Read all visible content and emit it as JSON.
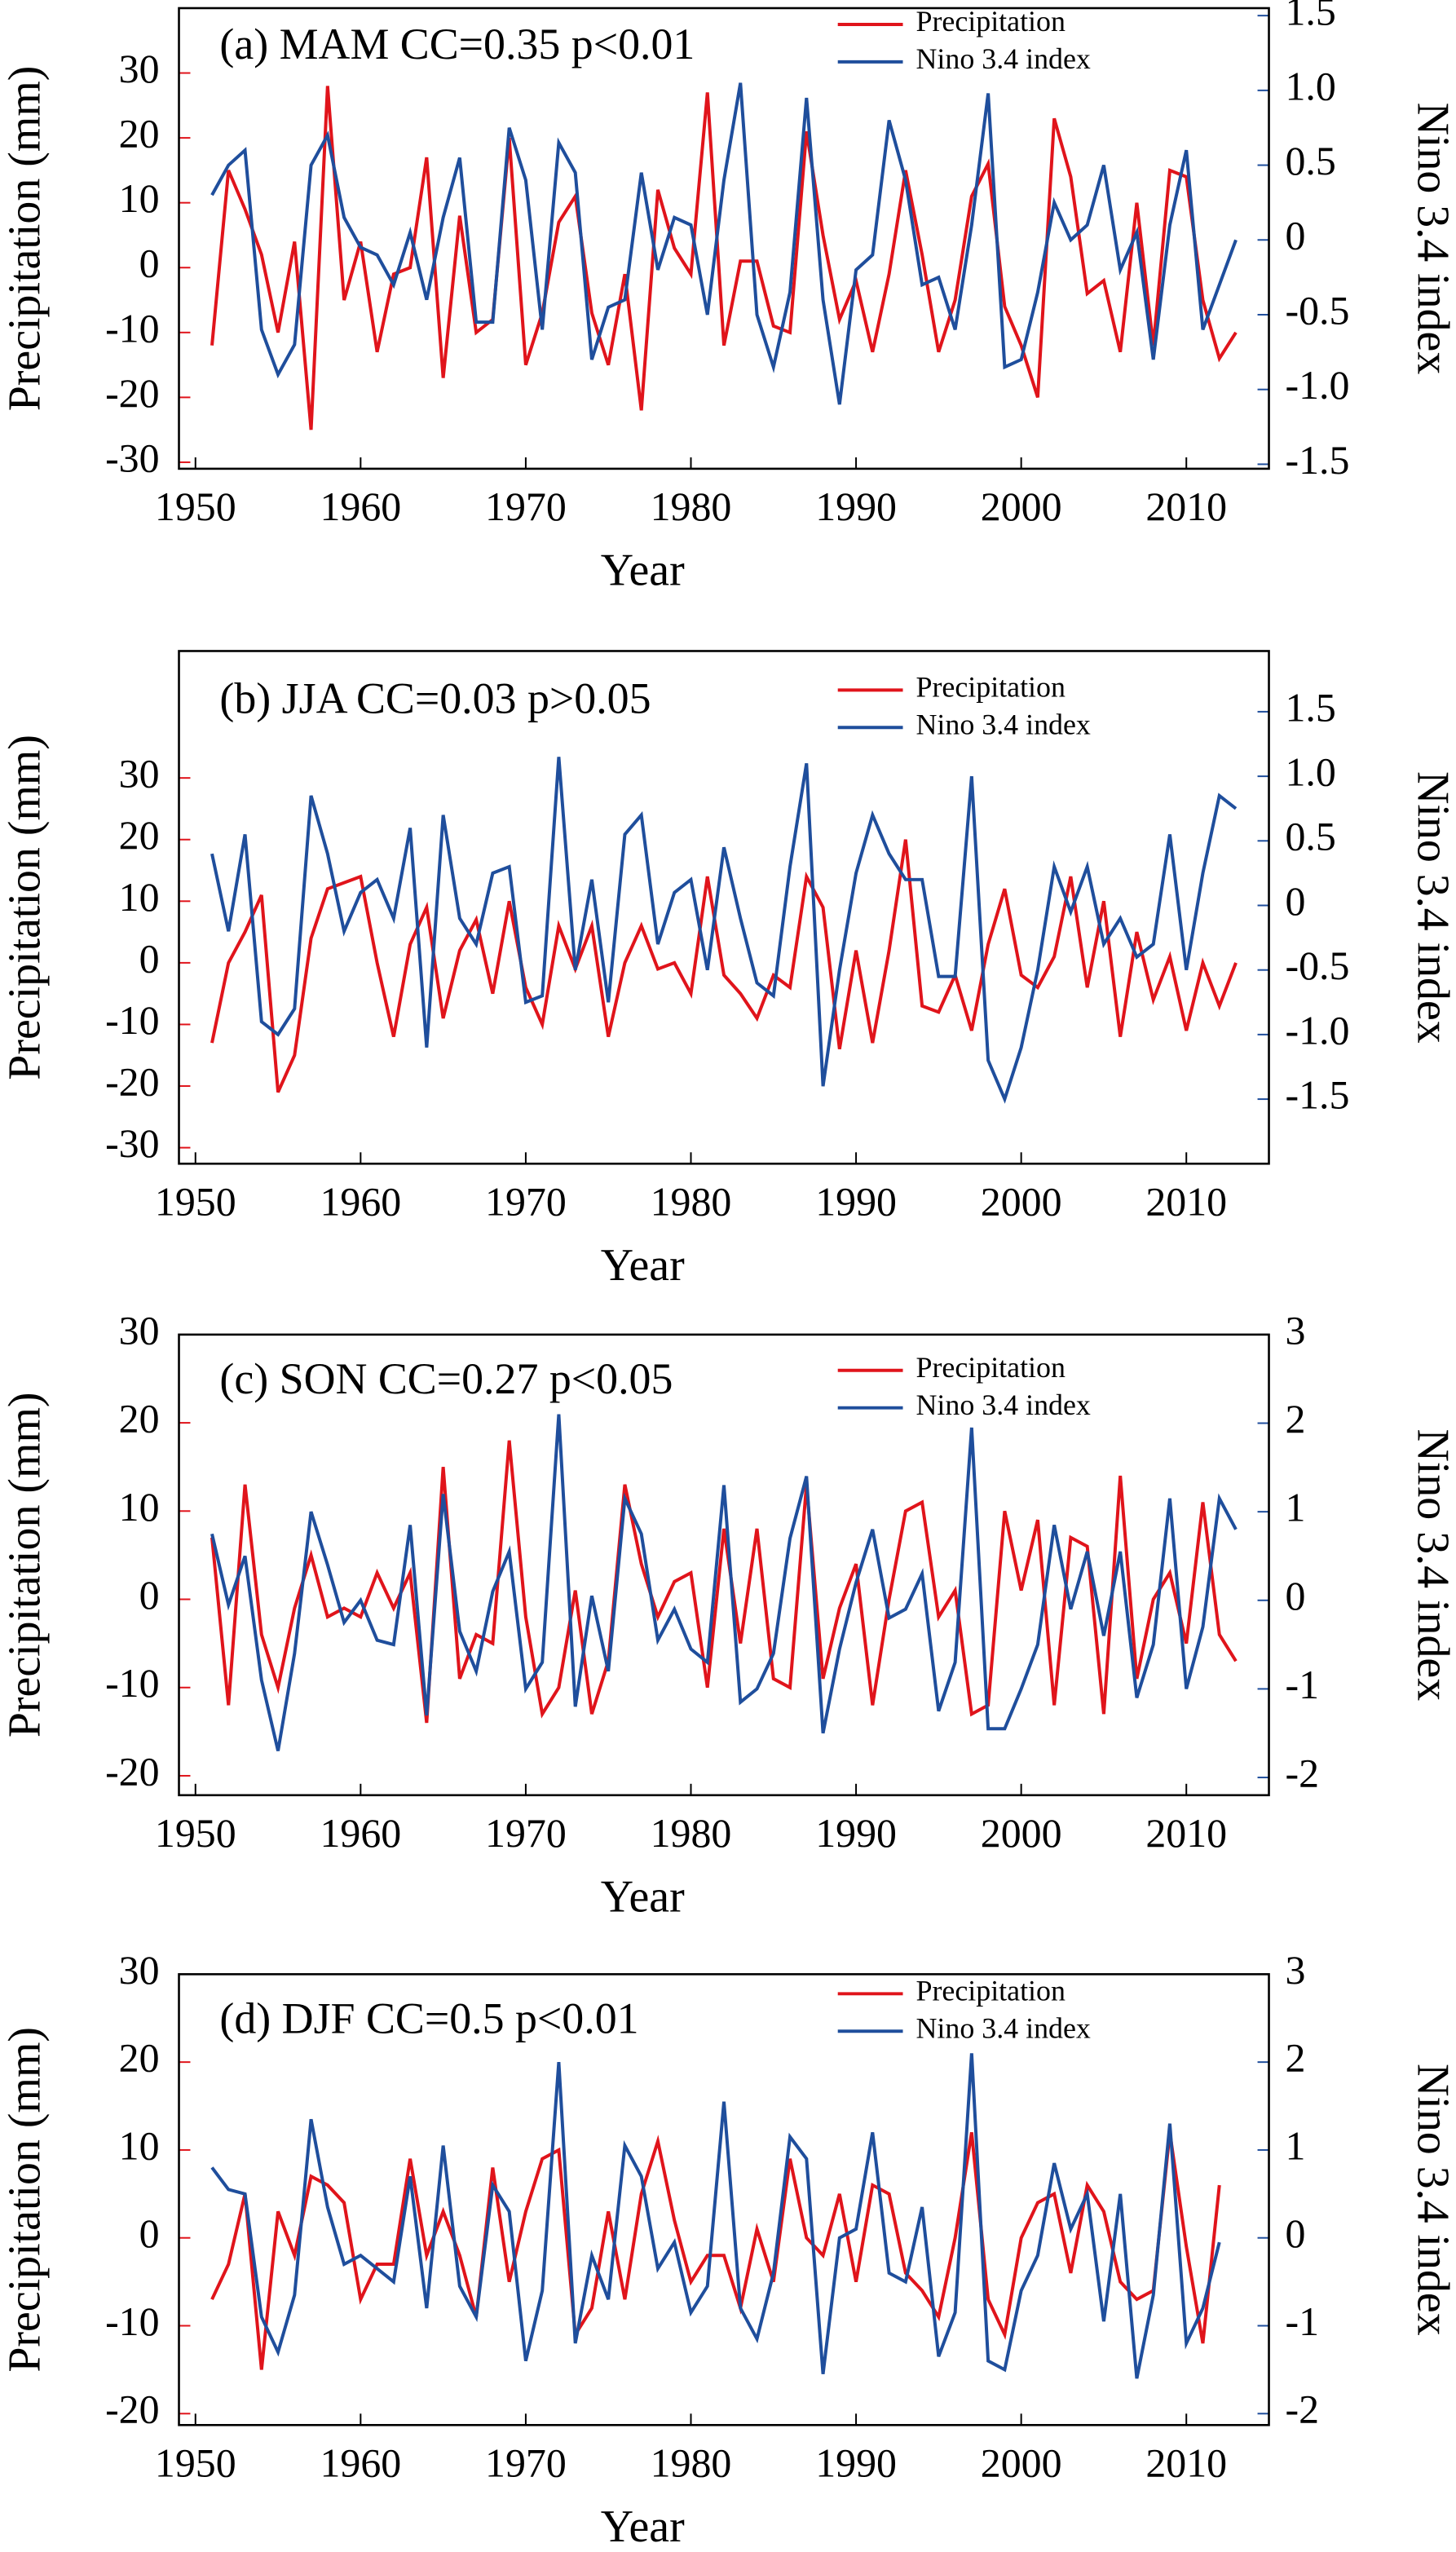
{
  "chart_data": [
    {
      "type": "line",
      "title": "(a) MAM CC=0.35 p<0.01",
      "xlabel": "Year",
      "ylabel": "Precipitation (mm)",
      "y2label": "Nino 3.4 index",
      "x": [
        1951,
        1952,
        1953,
        1954,
        1955,
        1956,
        1957,
        1958,
        1959,
        1960,
        1961,
        1962,
        1963,
        1964,
        1965,
        1966,
        1967,
        1968,
        1969,
        1970,
        1971,
        1972,
        1973,
        1974,
        1975,
        1976,
        1977,
        1978,
        1979,
        1980,
        1981,
        1982,
        1983,
        1984,
        1985,
        1986,
        1987,
        1988,
        1989,
        1990,
        1991,
        1992,
        1993,
        1994,
        1995,
        1996,
        1997,
        1998,
        1999,
        2000,
        2001,
        2002,
        2003,
        2004,
        2005,
        2006,
        2007,
        2008,
        2009,
        2010,
        2011,
        2012,
        2013
      ],
      "series": [
        {
          "name": "Precipitation",
          "color": "#e0141b",
          "values": [
            -12,
            15,
            9,
            2,
            -10,
            4,
            -25,
            28,
            -5,
            4,
            -13,
            -1,
            0,
            17,
            -17,
            8,
            -10,
            -8,
            20,
            -15,
            -7,
            7,
            11,
            -7,
            -15,
            -1,
            -22,
            12,
            3,
            -1,
            27,
            -12,
            1,
            1,
            -9,
            -10,
            21,
            5,
            -8,
            -2,
            -13,
            -1,
            15,
            2,
            -13,
            -5,
            11,
            16,
            -6,
            -12,
            -20,
            23,
            14,
            -4,
            -2,
            -13,
            10,
            -12,
            15,
            14,
            -5,
            -14,
            -10
          ]
        },
        {
          "name": "Nino 3.4 index",
          "color": "#1f4e9c",
          "axis": "y2",
          "values": [
            0.3,
            0.5,
            0.6,
            -0.6,
            -0.9,
            -0.7,
            0.5,
            0.7,
            0.15,
            -0.05,
            -0.1,
            -0.3,
            0.05,
            -0.4,
            0.15,
            0.55,
            -0.55,
            -0.55,
            0.75,
            0.4,
            -0.6,
            0.65,
            0.45,
            -0.8,
            -0.45,
            -0.4,
            0.45,
            -0.2,
            0.15,
            0.1,
            -0.5,
            0.4,
            1.05,
            -0.5,
            -0.85,
            -0.35,
            0.95,
            -0.4,
            -1.1,
            -0.2,
            -0.1,
            0.8,
            0.4,
            -0.3,
            -0.25,
            -0.6,
            0.1,
            0.98,
            -0.85,
            -0.8,
            -0.35,
            0.25,
            0,
            0.1,
            0.5,
            -0.2,
            0.05,
            -0.8,
            0.1,
            0.6,
            -0.6,
            -0.3,
            0
          ]
        }
      ],
      "xlim": [
        1949,
        2015
      ],
      "xticks": [
        1950,
        1960,
        1970,
        1980,
        1990,
        2000,
        2010
      ],
      "ylim": [
        -31,
        40
      ],
      "yticks": [
        -30,
        -20,
        -10,
        0,
        10,
        20,
        30
      ],
      "y2lim": [
        -1.53,
        1.55
      ],
      "y2ticks": [
        {
          "value": -1.5,
          "label": "-1.5"
        },
        {
          "value": -1.0,
          "label": "-1.0"
        },
        -0.5,
        0,
        0.5,
        {
          "value": 1.0,
          "label": "1.0"
        },
        1.5
      ],
      "legend": "upper right"
    },
    {
      "type": "line",
      "title": "(b) JJA CC=0.03 p>0.05",
      "xlabel": "Year",
      "ylabel": "Precipitation (mm)",
      "y2label": "Nino 3.4 index",
      "x": [
        1951,
        1952,
        1953,
        1954,
        1955,
        1956,
        1957,
        1958,
        1959,
        1960,
        1961,
        1962,
        1963,
        1964,
        1965,
        1966,
        1967,
        1968,
        1969,
        1970,
        1971,
        1972,
        1973,
        1974,
        1975,
        1976,
        1977,
        1978,
        1979,
        1980,
        1981,
        1982,
        1983,
        1984,
        1985,
        1986,
        1987,
        1988,
        1989,
        1990,
        1991,
        1992,
        1993,
        1994,
        1995,
        1996,
        1997,
        1998,
        1999,
        2000,
        2001,
        2002,
        2003,
        2004,
        2005,
        2006,
        2007,
        2008,
        2009,
        2010,
        2011,
        2012,
        2013
      ],
      "series": [
        {
          "name": "Precipitation",
          "color": "#e0141b",
          "values": [
            -13,
            0,
            5,
            11,
            -21,
            -15,
            4,
            12,
            13,
            14,
            0,
            -12,
            3,
            9,
            -9,
            2,
            7,
            -5,
            10,
            -4,
            -10,
            6,
            -1,
            6,
            -12,
            0,
            6,
            -1,
            0,
            -5,
            14,
            -2,
            -5,
            -9,
            -2,
            -4,
            14,
            9,
            -14,
            2,
            -13,
            2,
            20,
            -7,
            -8,
            -2,
            -11,
            3,
            12,
            -2,
            -4,
            1,
            14,
            -4,
            10,
            -12,
            5,
            -6,
            1,
            -11,
            0,
            -7,
            0
          ]
        },
        {
          "name": "Nino 3.4 index",
          "color": "#1f4e9c",
          "axis": "y2",
          "values": [
            0.4,
            -0.2,
            0.55,
            -0.9,
            -1.0,
            -0.8,
            0.85,
            0.4,
            -0.2,
            0.1,
            0.2,
            -0.1,
            0.6,
            -1.1,
            0.7,
            -0.1,
            -0.3,
            0.25,
            0.3,
            -0.75,
            -0.7,
            1.15,
            -0.5,
            0.2,
            -0.75,
            0.55,
            0.7,
            -0.3,
            0.1,
            0.2,
            -0.5,
            0.45,
            -0.1,
            -0.6,
            -0.7,
            0.3,
            1.1,
            -1.4,
            -0.5,
            0.25,
            0.7,
            0.4,
            0.2,
            0.2,
            -0.55,
            -0.55,
            1.0,
            -1.2,
            -1.5,
            -1.1,
            -0.5,
            0.3,
            -0.05,
            0.3,
            -0.3,
            -0.1,
            -0.4,
            -0.3,
            0.55,
            -0.5,
            0.25,
            0.85,
            0.75
          ]
        }
      ],
      "xlim": [
        1949,
        2015
      ],
      "xticks": [
        1950,
        1960,
        1970,
        1980,
        1990,
        2000,
        2010
      ],
      "ylim": [
        -32.6,
        50.6
      ],
      "yticks": [
        -30,
        -20,
        -10,
        0,
        10,
        20,
        30
      ],
      "y2lim": [
        -2,
        1.97
      ],
      "y2ticks": [
        {
          "value": -1.5,
          "label": "-1.5"
        },
        {
          "value": -1.0,
          "label": "-1.0"
        },
        -0.5,
        0,
        0.5,
        {
          "value": 1.0,
          "label": "1.0"
        },
        1.5
      ],
      "legend": "upper right"
    },
    {
      "type": "line",
      "title": "(c) SON CC=0.27 p<0.05",
      "xlabel": "Year",
      "ylabel": "Precipitation (mm)",
      "y2label": "Nino 3.4 index",
      "x": [
        1951,
        1952,
        1953,
        1954,
        1955,
        1956,
        1957,
        1958,
        1959,
        1960,
        1961,
        1962,
        1963,
        1964,
        1965,
        1966,
        1967,
        1968,
        1969,
        1970,
        1971,
        1972,
        1973,
        1974,
        1975,
        1976,
        1977,
        1978,
        1979,
        1980,
        1981,
        1982,
        1983,
        1984,
        1985,
        1986,
        1987,
        1988,
        1989,
        1990,
        1991,
        1992,
        1993,
        1994,
        1995,
        1996,
        1997,
        1998,
        1999,
        2000,
        2001,
        2002,
        2003,
        2004,
        2005,
        2006,
        2007,
        2008,
        2009,
        2010,
        2011,
        2012,
        2013
      ],
      "series": [
        {
          "name": "Precipitation",
          "color": "#e0141b",
          "values": [
            7,
            -12,
            13,
            -4,
            -10,
            -1,
            5,
            -2,
            -1,
            -2,
            3,
            -1,
            3,
            -14,
            15,
            -9,
            -4,
            -5,
            18,
            -2,
            -13,
            -10,
            1,
            -13,
            -7,
            13,
            4,
            -2,
            2,
            3,
            -10,
            8,
            -5,
            8,
            -9,
            -10,
            13,
            -9,
            -1,
            4,
            -12,
            0,
            10,
            11,
            -2,
            1,
            -13,
            -12,
            10,
            1,
            9,
            -12,
            7,
            6,
            -13,
            14,
            -9,
            0,
            3,
            -5,
            11,
            -4,
            -7
          ]
        },
        {
          "name": "Nino 3.4 index",
          "color": "#1f4e9c",
          "axis": "y2",
          "values": [
            0.75,
            -0.05,
            0.5,
            -0.9,
            -1.7,
            -0.6,
            1.0,
            0.4,
            -0.25,
            0,
            -0.45,
            -0.5,
            0.85,
            -1.3,
            1.2,
            -0.35,
            -0.8,
            0.1,
            0.55,
            -1.0,
            -0.7,
            2.1,
            -1.2,
            0.05,
            -0.8,
            1.15,
            0.75,
            -0.45,
            -0.1,
            -0.55,
            -0.7,
            1.3,
            -1.15,
            -1.0,
            -0.6,
            0.7,
            1.4,
            -1.5,
            -0.55,
            0.2,
            0.8,
            -0.2,
            -0.1,
            0.3,
            -1.25,
            -0.7,
            1.95,
            -1.45,
            -1.45,
            -1.0,
            -0.5,
            0.85,
            -0.1,
            0.55,
            -0.4,
            0.55,
            -1.1,
            -0.5,
            1.15,
            -1.0,
            -0.3,
            1.15,
            0.8
          ]
        }
      ],
      "xlim": [
        1949,
        2015
      ],
      "xticks": [
        1950,
        1960,
        1970,
        1980,
        1990,
        2000,
        2010
      ],
      "ylim": [
        -22.2,
        30
      ],
      "yticks": [
        -20,
        -10,
        0,
        10,
        20,
        30
      ],
      "y2lim": [
        -2.2,
        3
      ],
      "y2ticks": [
        -2,
        -1,
        0,
        1,
        2,
        3
      ],
      "legend": "upper right"
    },
    {
      "type": "line",
      "title": "(d) DJF CC=0.5 p<0.01",
      "xlabel": "Year",
      "ylabel": "Precipitation (mm)",
      "y2label": "Nino 3.4 index",
      "x": [
        1951,
        1952,
        1953,
        1954,
        1955,
        1956,
        1957,
        1958,
        1959,
        1960,
        1961,
        1962,
        1963,
        1964,
        1965,
        1966,
        1967,
        1968,
        1969,
        1970,
        1971,
        1972,
        1973,
        1974,
        1975,
        1976,
        1977,
        1978,
        1979,
        1980,
        1981,
        1982,
        1983,
        1984,
        1985,
        1986,
        1987,
        1988,
        1989,
        1990,
        1991,
        1992,
        1993,
        1994,
        1995,
        1996,
        1997,
        1998,
        1999,
        2000,
        2001,
        2002,
        2003,
        2004,
        2005,
        2006,
        2007,
        2008,
        2009,
        2010,
        2011,
        2012
      ],
      "series": [
        {
          "name": "Precipitation",
          "color": "#e0141b",
          "values": [
            -7,
            -3,
            5,
            -15,
            3,
            -2,
            7,
            6,
            4,
            -7,
            -3,
            -3,
            9,
            -2,
            3,
            -2,
            -9,
            8,
            -5,
            3,
            9,
            10,
            -11,
            -8,
            3,
            -7,
            5,
            11,
            2,
            -5,
            -2,
            -2,
            -8,
            1,
            -5,
            9,
            0,
            -2,
            5,
            -5,
            6,
            5,
            -4,
            -6,
            -9,
            0,
            12,
            -7,
            -11,
            0,
            4,
            5,
            -4,
            6,
            3,
            -5,
            -7,
            -6,
            12,
            -1,
            -12,
            6
          ]
        },
        {
          "name": "Nino 3.4 index",
          "color": "#1f4e9c",
          "axis": "y2",
          "values": [
            0.8,
            0.55,
            0.5,
            -0.9,
            -1.3,
            -0.65,
            1.35,
            0.35,
            -0.3,
            -0.2,
            -0.35,
            -0.5,
            0.7,
            -0.8,
            1.05,
            -0.55,
            -0.9,
            0.6,
            0.3,
            -1.4,
            -0.6,
            2.0,
            -1.2,
            -0.2,
            -0.7,
            1.05,
            0.7,
            -0.35,
            -0.05,
            -0.85,
            -0.55,
            1.55,
            -0.8,
            -1.15,
            -0.4,
            1.15,
            0.9,
            -1.55,
            0.0,
            0.1,
            1.2,
            -0.4,
            -0.5,
            0.35,
            -1.35,
            -0.85,
            2.1,
            -1.4,
            -1.5,
            -0.6,
            -0.2,
            0.85,
            0.1,
            0.5,
            -0.95,
            0.5,
            -1.6,
            -0.65,
            1.3,
            -1.2,
            -0.8,
            -0.05
          ]
        }
      ],
      "xlim": [
        1949,
        2015
      ],
      "xticks": [
        1950,
        1960,
        1970,
        1980,
        1990,
        2000,
        2010
      ],
      "ylim": [
        -21.3,
        30
      ],
      "yticks": [
        -20,
        -10,
        0,
        10,
        20,
        30
      ],
      "y2lim": [
        -2.13,
        3
      ],
      "y2ticks": [
        -2,
        -1,
        0,
        1,
        2,
        3
      ],
      "legend": "upper right"
    }
  ]
}
